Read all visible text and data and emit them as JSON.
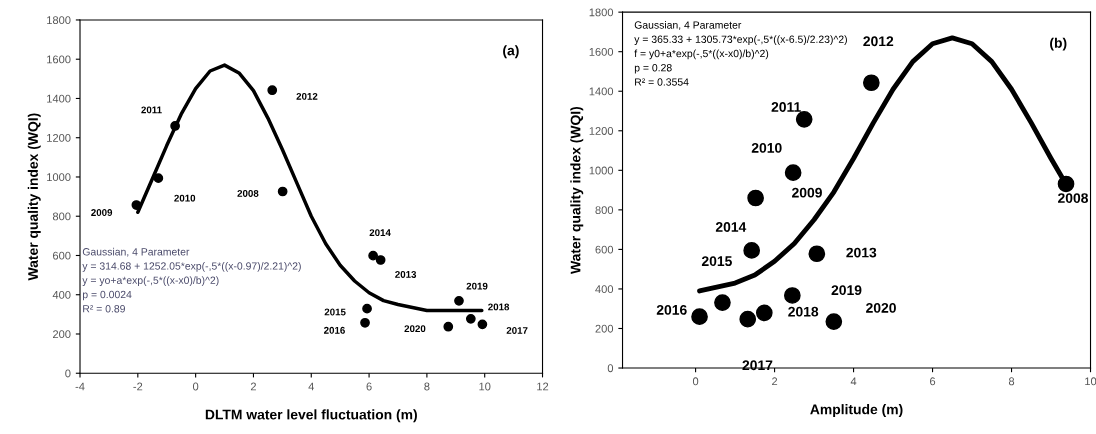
{
  "chart_data": [
    {
      "type": "scatter",
      "title": "(a)",
      "xlabel": "DLTM water level fluctuation (m)",
      "ylabel": "Water quality index (WQI)",
      "xlim": [
        -4,
        12
      ],
      "xticks": [
        -4,
        -2,
        0,
        2,
        4,
        6,
        8,
        10,
        12
      ],
      "ylim": [
        0,
        1800
      ],
      "yticks": [
        0,
        200,
        400,
        600,
        800,
        1000,
        1200,
        1400,
        1600,
        1800
      ],
      "grid": false,
      "legend": false,
      "marker": "circle",
      "annotations": [
        "Gaussian, 4 Parameter",
        "y = 314.68 + 1252.05*exp(-,5*((x-0.97)/2.21)^2)",
        "y = yo+a*exp(-,5*((x-x0)/b)^2)",
        "p = 0.0024",
        "R² = 0.89",
        {
          "text": "2008",
          "x": 3.01,
          "y": 926
        },
        {
          "text": "2009",
          "x": -2.05,
          "y": 857
        },
        {
          "text": "2010",
          "x": -1.29,
          "y": 994
        },
        {
          "text": "2011",
          "x": -0.71,
          "y": 1260
        },
        {
          "text": "2012",
          "x": 2.65,
          "y": 1442
        },
        {
          "text": "2013",
          "x": 6.4,
          "y": 577
        },
        {
          "text": "2014",
          "x": 6.14,
          "y": 599
        },
        {
          "text": "2015",
          "x": 5.93,
          "y": 329
        },
        {
          "text": "2016",
          "x": 5.86,
          "y": 257
        },
        {
          "text": "2017",
          "x": 9.92,
          "y": 249
        },
        {
          "text": "2018",
          "x": 9.52,
          "y": 277
        },
        {
          "text": "2019",
          "x": 9.11,
          "y": 369
        },
        {
          "text": "2020",
          "x": 8.74,
          "y": 237
        }
      ],
      "series": [
        {
          "type": "scatter",
          "color": "#000000",
          "x": [
            3.01,
            -2.05,
            -1.29,
            -0.71,
            2.65,
            6.4,
            6.14,
            5.93,
            5.86,
            9.92,
            9.52,
            9.11,
            8.74
          ],
          "values": [
            926,
            857,
            994,
            1260,
            1442,
            577,
            599,
            329,
            257,
            249,
            277,
            369,
            237
          ]
        },
        {
          "type": "line",
          "color": "#000000",
          "marker": "none",
          "line_style": "solid",
          "x": [
            -2,
            -1.5,
            -1,
            -0.5,
            0,
            0.5,
            1,
            1.5,
            2,
            2.5,
            3,
            3.5,
            4,
            4.5,
            5,
            5.5,
            6,
            6.5,
            7,
            8,
            9,
            9.9
          ],
          "values": [
            820,
            990,
            1160,
            1320,
            1450,
            1540,
            1570,
            1530,
            1440,
            1300,
            1140,
            970,
            800,
            660,
            550,
            470,
            410,
            370,
            350,
            320,
            320,
            320
          ]
        }
      ]
    },
    {
      "type": "scatter",
      "title": "(b)",
      "xlabel": "Amplitude (m)",
      "ylabel": "Water quality index (WQI)",
      "xlim": [
        -1.85,
        10
      ],
      "xticks": [
        0,
        2,
        4,
        6,
        8,
        10
      ],
      "ylim": [
        0,
        1800
      ],
      "yticks": [
        0,
        200,
        400,
        600,
        800,
        1000,
        1200,
        1400,
        1600,
        1800
      ],
      "grid": false,
      "legend": false,
      "marker": "circle",
      "annotations": [
        "Gaussian, 4 Parameter",
        "y = 365.33 + 1305.73*exp(-,5*((x-6.5)/2.23)^2)",
        "f = y0+a*exp(-,5*((x-x0)/b)^2)",
        "p = 0.28",
        "R² = 0.3554",
        {
          "text": "2008",
          "x": 9.38,
          "y": 931
        },
        {
          "text": "2009",
          "x": 1.52,
          "y": 860
        },
        {
          "text": "2010",
          "x": 2.47,
          "y": 988
        },
        {
          "text": "2011",
          "x": 2.75,
          "y": 1258
        },
        {
          "text": "2012",
          "x": 4.45,
          "y": 1443
        },
        {
          "text": "2013",
          "x": 3.07,
          "y": 578
        },
        {
          "text": "2014",
          "x": 1.42,
          "y": 595
        },
        {
          "text": "2015",
          "x": 0.68,
          "y": 331
        },
        {
          "text": "2016",
          "x": 0.1,
          "y": 260
        },
        {
          "text": "2017",
          "x": 1.32,
          "y": 247
        },
        {
          "text": "2018",
          "x": 1.74,
          "y": 279
        },
        {
          "text": "2019",
          "x": 2.45,
          "y": 367
        },
        {
          "text": "2020",
          "x": 3.5,
          "y": 235
        }
      ],
      "series": [
        {
          "type": "scatter",
          "color": "#000000",
          "x": [
            9.38,
            1.52,
            2.47,
            2.75,
            4.45,
            3.07,
            1.42,
            0.68,
            0.1,
            1.32,
            1.74,
            2.45,
            3.5
          ],
          "values": [
            931,
            860,
            988,
            1258,
            1443,
            578,
            595,
            331,
            260,
            247,
            279,
            367,
            235
          ]
        },
        {
          "type": "line",
          "color": "#000000",
          "marker": "none",
          "line_style": "solid",
          "x": [
            0.1,
            1,
            1.5,
            2,
            2.5,
            3,
            3.5,
            4,
            4.5,
            5,
            5.5,
            6,
            6.5,
            7,
            7.5,
            8,
            8.5,
            9,
            9.38
          ],
          "values": [
            390,
            430,
            470,
            540,
            630,
            750,
            890,
            1060,
            1240,
            1410,
            1550,
            1640,
            1670,
            1640,
            1550,
            1410,
            1240,
            1060,
            930
          ]
        }
      ]
    }
  ]
}
